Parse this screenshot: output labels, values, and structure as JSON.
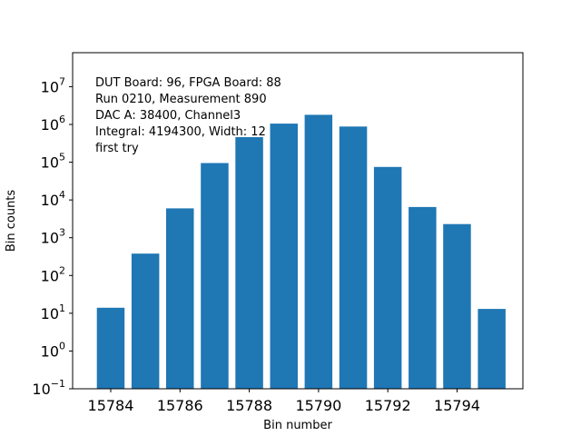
{
  "chart_data": {
    "type": "bar",
    "xlabel": "Bin number",
    "ylabel": "Bin counts",
    "yscale": "log",
    "ylim_exponents": [
      -1,
      7.9
    ],
    "xlim": [
      15782.9,
      15795.9
    ],
    "bar_color": "#1f77b4",
    "x": [
      15784,
      15785,
      15786,
      15787,
      15788,
      15789,
      15790,
      15791,
      15792,
      15793,
      15794,
      15795
    ],
    "values": [
      14,
      380,
      6000,
      95000,
      460000,
      1050000,
      1800000,
      880000,
      75000,
      6500,
      2300,
      13
    ],
    "xticks": [
      15784,
      15786,
      15788,
      15790,
      15792,
      15794
    ],
    "yticks": [
      {
        "base": "10",
        "exp": "-1",
        "value": -1
      },
      {
        "base": "10",
        "exp": "0",
        "value": 0
      },
      {
        "base": "10",
        "exp": "1",
        "value": 1
      },
      {
        "base": "10",
        "exp": "2",
        "value": 2
      },
      {
        "base": "10",
        "exp": "3",
        "value": 3
      },
      {
        "base": "10",
        "exp": "4",
        "value": 4
      },
      {
        "base": "10",
        "exp": "5",
        "value": 5
      },
      {
        "base": "10",
        "exp": "6",
        "value": 6
      },
      {
        "base": "10",
        "exp": "7",
        "value": 7
      }
    ],
    "annotation": [
      "DUT Board: 96, FPGA Board: 88",
      "Run 0210, Measurement 890",
      "DAC A: 38400, Channel3",
      "Integral: 4194300, Width: 12",
      "first try"
    ]
  }
}
